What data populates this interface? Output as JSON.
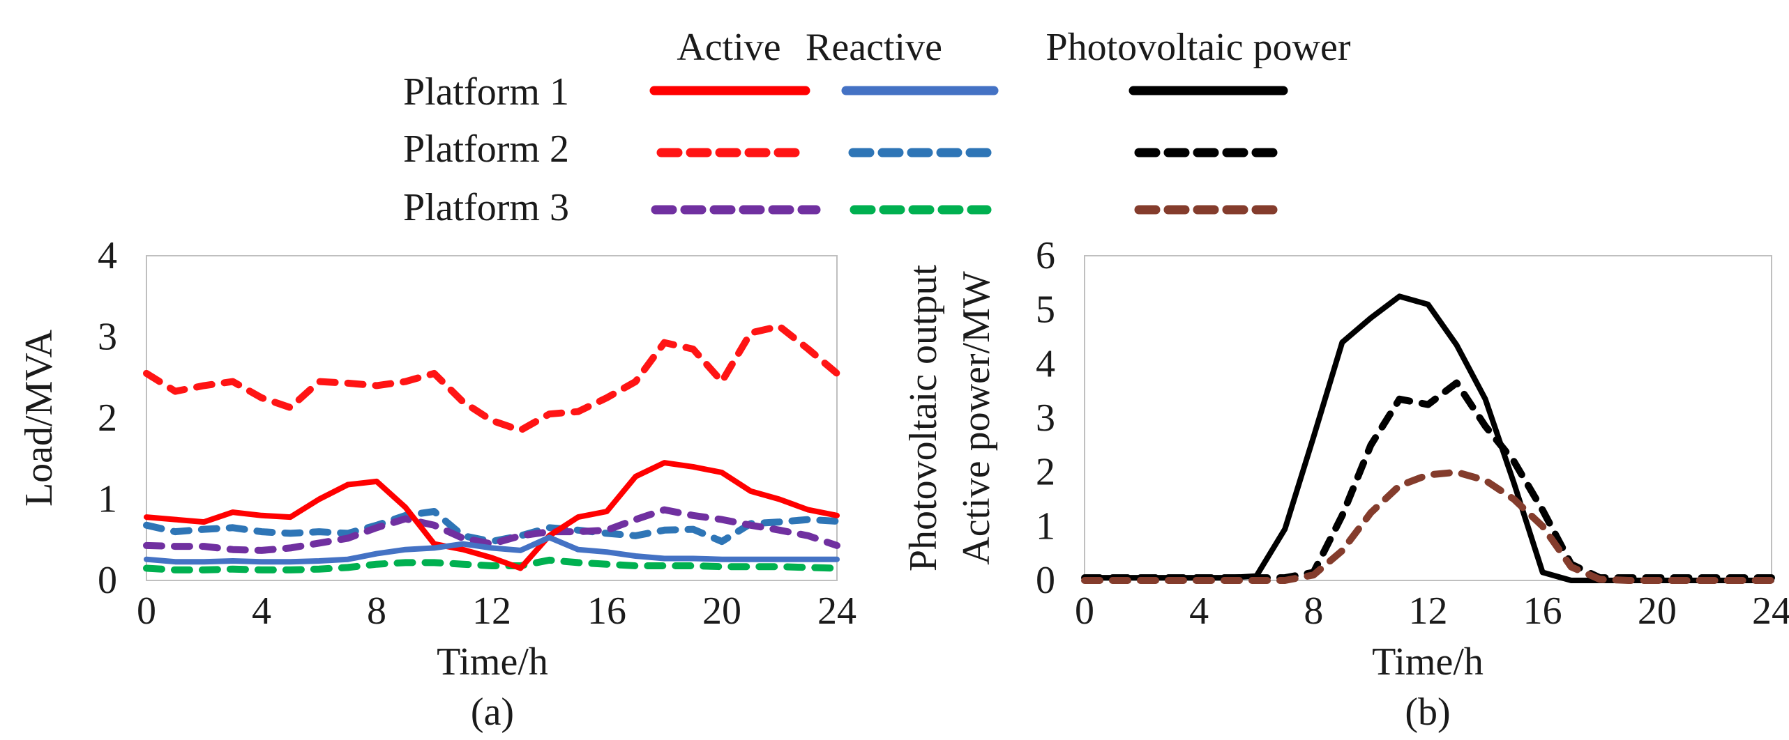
{
  "legend": {
    "columns": [
      "Active",
      "Reactive",
      "Photovoltaic power"
    ],
    "rows": [
      "Platform 1",
      "Platform 2",
      "Platform 3"
    ]
  },
  "colors": {
    "p1_active": "#ff0000",
    "p2_active": "#ff1414",
    "p3_active": "#7030a0",
    "p1_reactive": "#4472c4",
    "p2_reactive": "#2e75b6",
    "p3_reactive": "#00b050",
    "pv1": "#000000",
    "pv2": "#000000",
    "pv3": "#843c2c"
  },
  "chart_data": [
    {
      "type": "line",
      "panel_label": "(a)",
      "xlabel": "Time/h",
      "ylabel": "Load/MVA",
      "xlim": [
        0,
        24
      ],
      "ylim": [
        0,
        4
      ],
      "xticks": [
        "0",
        "4",
        "8",
        "12",
        "16",
        "20",
        "24"
      ],
      "yticks": [
        "0",
        "1",
        "2",
        "3",
        "4"
      ],
      "grid": false,
      "x": [
        0,
        1,
        2,
        3,
        4,
        5,
        6,
        7,
        8,
        9,
        10,
        11,
        12,
        13,
        14,
        15,
        16,
        17,
        18,
        19,
        20,
        21,
        22,
        23,
        24
      ],
      "series": [
        {
          "name": "Platform 1 Active",
          "style": "solid",
          "values": [
            0.78,
            0.75,
            0.72,
            0.84,
            0.8,
            0.78,
            1.0,
            1.18,
            1.22,
            0.9,
            0.45,
            0.38,
            0.28,
            0.15,
            0.55,
            0.78,
            0.85,
            1.28,
            1.45,
            1.4,
            1.33,
            1.1,
            1.0,
            0.87,
            0.8
          ]
        },
        {
          "name": "Platform 1 Reactive",
          "style": "solid",
          "values": [
            0.26,
            0.23,
            0.23,
            0.24,
            0.23,
            0.23,
            0.24,
            0.26,
            0.33,
            0.38,
            0.4,
            0.45,
            0.4,
            0.37,
            0.53,
            0.38,
            0.35,
            0.3,
            0.27,
            0.27,
            0.26,
            0.26,
            0.26,
            0.26,
            0.26
          ]
        },
        {
          "name": "Platform 2 Active",
          "style": "dashed",
          "values": [
            2.55,
            2.33,
            2.4,
            2.45,
            2.25,
            2.13,
            2.45,
            2.43,
            2.4,
            2.45,
            2.55,
            2.2,
            1.97,
            1.85,
            2.05,
            2.08,
            2.25,
            2.45,
            2.93,
            2.85,
            2.45,
            3.05,
            3.13,
            2.85,
            2.55
          ]
        },
        {
          "name": "Platform 2 Reactive",
          "style": "dashed",
          "values": [
            0.68,
            0.6,
            0.63,
            0.65,
            0.6,
            0.58,
            0.6,
            0.58,
            0.68,
            0.8,
            0.85,
            0.55,
            0.48,
            0.55,
            0.65,
            0.62,
            0.58,
            0.55,
            0.62,
            0.63,
            0.48,
            0.7,
            0.72,
            0.75,
            0.73
          ]
        },
        {
          "name": "Platform 3 Active",
          "style": "dashed",
          "values": [
            0.43,
            0.42,
            0.42,
            0.38,
            0.37,
            0.4,
            0.46,
            0.52,
            0.65,
            0.76,
            0.68,
            0.52,
            0.45,
            0.55,
            0.6,
            0.6,
            0.62,
            0.75,
            0.87,
            0.8,
            0.75,
            0.68,
            0.62,
            0.55,
            0.43
          ]
        },
        {
          "name": "Platform 3 Reactive",
          "style": "dashed",
          "values": [
            0.15,
            0.13,
            0.13,
            0.14,
            0.13,
            0.13,
            0.14,
            0.16,
            0.2,
            0.22,
            0.22,
            0.2,
            0.18,
            0.18,
            0.25,
            0.22,
            0.2,
            0.18,
            0.18,
            0.18,
            0.17,
            0.17,
            0.17,
            0.16,
            0.15
          ]
        }
      ]
    },
    {
      "type": "line",
      "panel_label": "(b)",
      "xlabel": "Time/h",
      "ylabel_lines": [
        "Photovoltaic output",
        "Active power/MW"
      ],
      "xlim": [
        0,
        24
      ],
      "ylim": [
        0,
        6
      ],
      "xticks": [
        "0",
        "4",
        "8",
        "12",
        "16",
        "20",
        "24"
      ],
      "yticks": [
        "0",
        "1",
        "2",
        "3",
        "4",
        "5",
        "6"
      ],
      "grid": false,
      "x": [
        0,
        1,
        2,
        3,
        4,
        5,
        6,
        7,
        8,
        9,
        10,
        11,
        12,
        13,
        14,
        15,
        16,
        17,
        18,
        19,
        20,
        21,
        22,
        23,
        24
      ],
      "series": [
        {
          "name": "Platform 1 Photovoltaic power",
          "style": "solid",
          "values": [
            0.05,
            0.05,
            0.05,
            0.05,
            0.05,
            0.05,
            0.08,
            0.95,
            2.65,
            4.4,
            4.85,
            5.25,
            5.1,
            4.35,
            3.35,
            1.8,
            0.15,
            0.0,
            0.0,
            0.0,
            0.0,
            0.0,
            0.0,
            0.0,
            0.0
          ]
        },
        {
          "name": "Platform 2 Photovoltaic power",
          "style": "dashed",
          "values": [
            0.05,
            0.05,
            0.05,
            0.05,
            0.05,
            0.05,
            0.05,
            0.05,
            0.15,
            1.2,
            2.5,
            3.35,
            3.25,
            3.65,
            2.85,
            2.2,
            1.3,
            0.3,
            0.05,
            0.05,
            0.05,
            0.05,
            0.05,
            0.05,
            0.05
          ]
        },
        {
          "name": "Platform 3 Photovoltaic power",
          "style": "dashed",
          "values": [
            0.0,
            0.0,
            0.0,
            0.0,
            0.0,
            0.0,
            0.0,
            0.0,
            0.1,
            0.55,
            1.25,
            1.75,
            1.95,
            2.0,
            1.85,
            1.5,
            1.0,
            0.25,
            0.02,
            0.0,
            0.0,
            0.0,
            0.0,
            0.0,
            0.0
          ]
        }
      ]
    }
  ]
}
